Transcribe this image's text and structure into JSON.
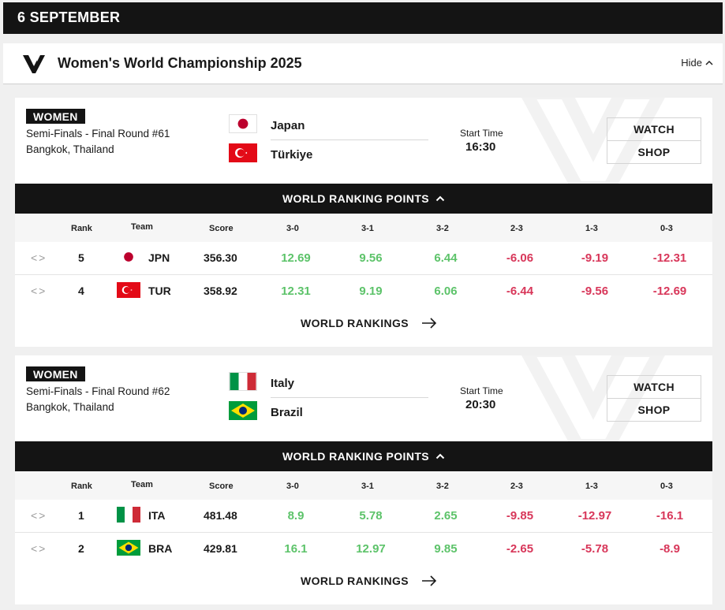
{
  "date_label": "6 SEPTEMBER",
  "championship": {
    "title": "Women's World Championship 2025",
    "hide_label": "Hide"
  },
  "colors": {
    "positive": "#5dc36a",
    "negative": "#d8375a",
    "dark": "#141414"
  },
  "icons": {
    "nav": "chevron-left-right",
    "collapse": "chevron-up-icon",
    "link": "arrow-right-icon"
  },
  "table_headers": {
    "rank": "Rank",
    "team": "Team",
    "score": "Score",
    "outcomes": [
      "3-0",
      "3-1",
      "3-2",
      "2-3",
      "1-3",
      "0-3"
    ]
  },
  "matches": [
    {
      "gender": "WOMEN",
      "round": "Semi-Finals - Final Round #61",
      "venue": "Bangkok, Thailand",
      "team_a": {
        "name": "Japan",
        "flag": "japan"
      },
      "team_b": {
        "name": "Türkiye",
        "flag": "turkiye"
      },
      "start_label": "Start Time",
      "start_time": "16:30",
      "watch_label": "WATCH",
      "shop_label": "SHOP",
      "wrp_label": "WORLD RANKING POINTS",
      "rankings_link": "WORLD RANKINGS",
      "rows": [
        {
          "rank": "5",
          "code": "JPN",
          "flag": "japan",
          "score": "356.30",
          "points": [
            "12.69",
            "9.56",
            "6.44",
            "-6.06",
            "-9.19",
            "-12.31"
          ]
        },
        {
          "rank": "4",
          "code": "TUR",
          "flag": "turkiye",
          "score": "358.92",
          "points": [
            "12.31",
            "9.19",
            "6.06",
            "-6.44",
            "-9.56",
            "-12.69"
          ]
        }
      ]
    },
    {
      "gender": "WOMEN",
      "round": "Semi-Finals - Final Round #62",
      "venue": "Bangkok, Thailand",
      "team_a": {
        "name": "Italy",
        "flag": "italy"
      },
      "team_b": {
        "name": "Brazil",
        "flag": "brazil"
      },
      "start_label": "Start Time",
      "start_time": "20:30",
      "watch_label": "WATCH",
      "shop_label": "SHOP",
      "wrp_label": "WORLD RANKING POINTS",
      "rankings_link": "WORLD RANKINGS",
      "rows": [
        {
          "rank": "1",
          "code": "ITA",
          "flag": "italy",
          "score": "481.48",
          "points": [
            "8.9",
            "5.78",
            "2.65",
            "-9.85",
            "-12.97",
            "-16.1"
          ]
        },
        {
          "rank": "2",
          "code": "BRA",
          "flag": "brazil",
          "score": "429.81",
          "points": [
            "16.1",
            "12.97",
            "9.85",
            "-2.65",
            "-5.78",
            "-8.9"
          ]
        }
      ]
    }
  ]
}
